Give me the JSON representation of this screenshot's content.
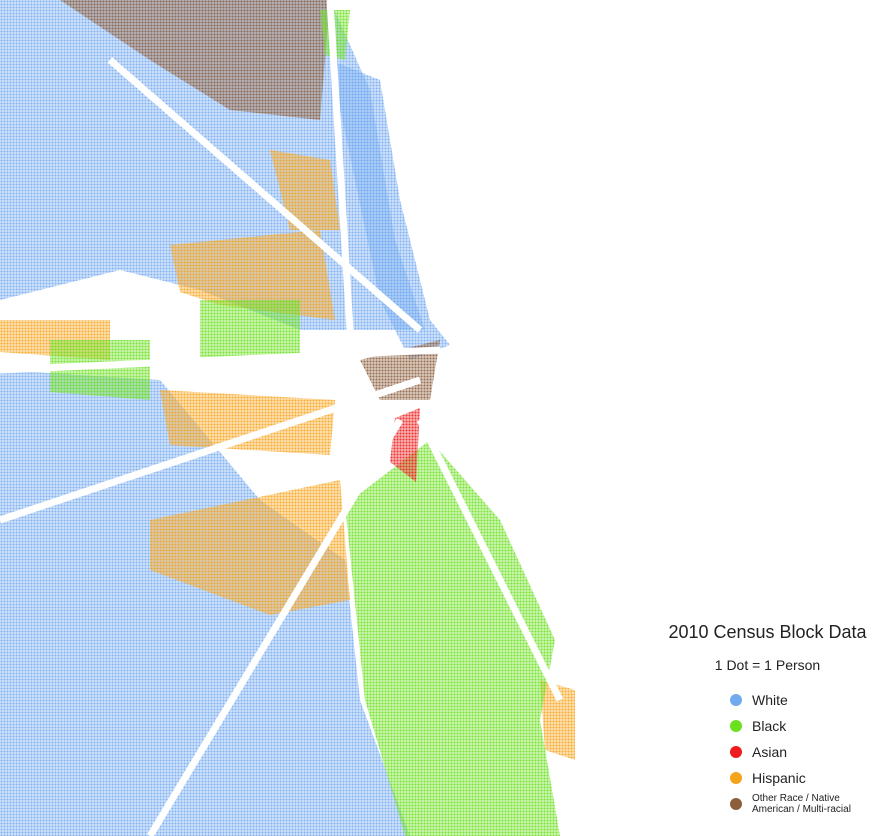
{
  "legend": {
    "title": "2010 Census Block Data",
    "subtitle": "1 Dot = 1 Person",
    "items": [
      {
        "name": "White",
        "color": "#72aaf0"
      },
      {
        "name": "Black",
        "color": "#6be01e"
      },
      {
        "name": "Asian",
        "color": "#ee1c1c"
      },
      {
        "name": "Hispanic",
        "color": "#f5a31a"
      },
      {
        "name": "Other Race / Native American / Multi-racial",
        "color": "#8b5e3c"
      }
    ]
  }
}
